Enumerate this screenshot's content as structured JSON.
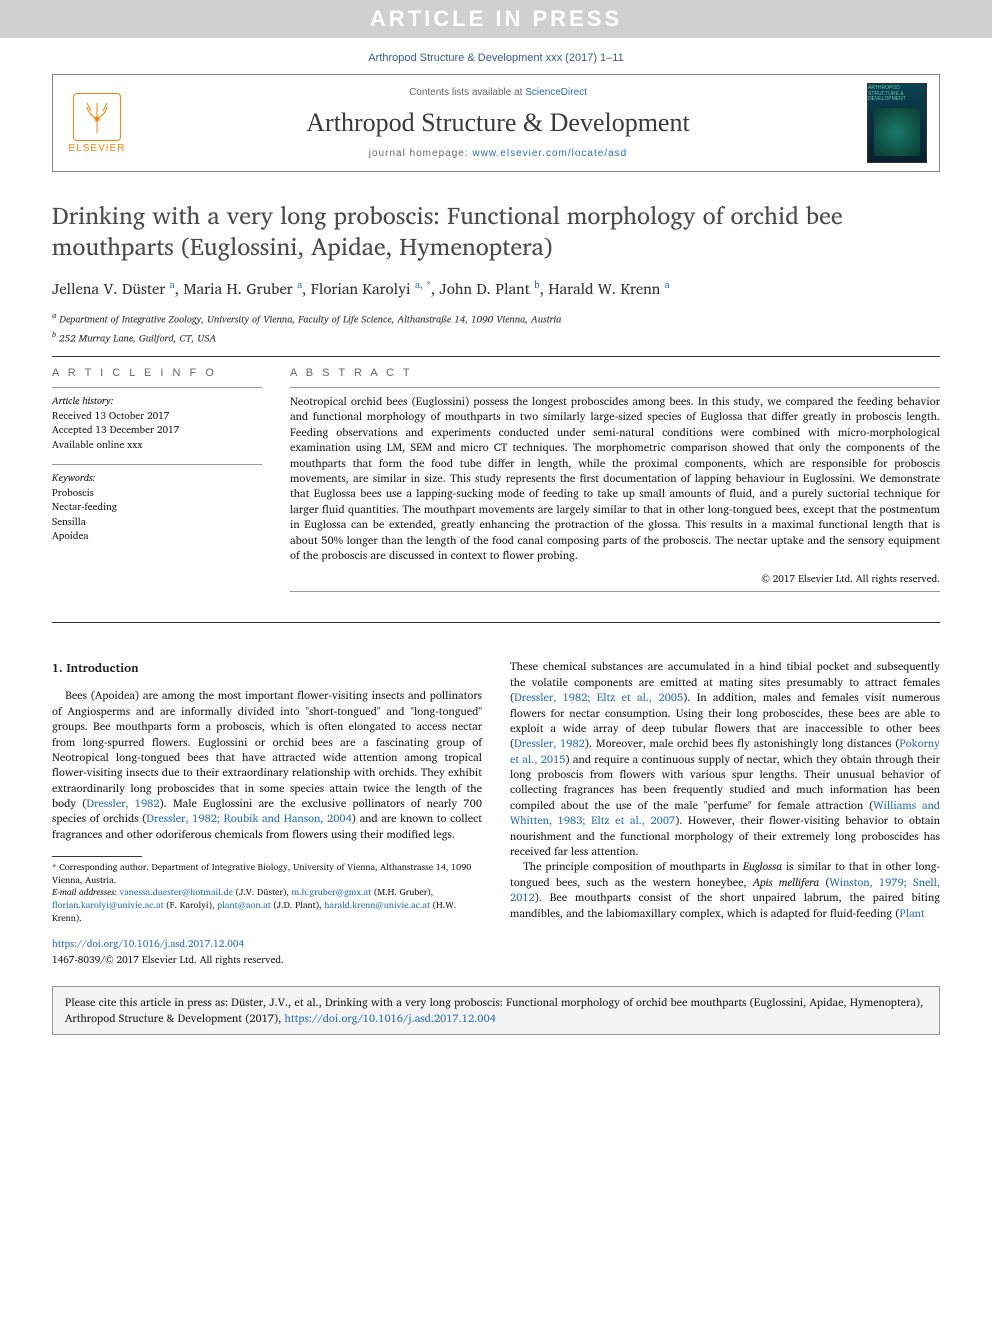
{
  "article_in_press": "ARTICLE IN PRESS",
  "citation_top": "Arthropod Structure & Development xxx (2017) 1–11",
  "header": {
    "contents_prefix": "Contents lists available at ",
    "contents_link": "ScienceDirect",
    "journal_name": "Arthropod Structure & Development",
    "homepage_prefix": "journal homepage: ",
    "homepage_url": "www.elsevier.com/locate/asd",
    "elsevier_label": "ELSEVIER",
    "cover_label": "ARTHROPOD\nSTRUCTURE &\nDEVELOPMENT"
  },
  "title": "Drinking with a very long proboscis: Functional morphology of orchid bee mouthparts (Euglossini, Apidae, Hymenoptera)",
  "authors_html": "Jellena V. Düster <sup>a</sup>, Maria H. Gruber <sup>a</sup>, Florian Karolyi <sup>a, *</sup>, John D. Plant <sup>b</sup>, Harald W. Krenn <sup>a</sup>",
  "affiliations": [
    "a Department of Integrative Zoology, University of Vienna, Faculty of Life Science, Althanstraße 14, 1090 Vienna, Austria",
    "b 252 Murray Lane, Guilford, CT, USA"
  ],
  "info": {
    "heading_info": "A R T I C L E   I N F O",
    "history_label": "Article history:",
    "history": [
      "Received 13 October 2017",
      "Accepted 13 December 2017",
      "Available online xxx"
    ],
    "keywords_label": "Keywords:",
    "keywords": [
      "Proboscis",
      "Nectar-feeding",
      "Sensilla",
      "Apoidea"
    ]
  },
  "abstract": {
    "heading": "A B S T R A C T",
    "text": "Neotropical orchid bees (Euglossini) possess the longest proboscides among bees. In this study, we compared the feeding behavior and functional morphology of mouthparts in two similarly large-sized species of Euglossa that differ greatly in proboscis length. Feeding observations and experiments conducted under semi-natural conditions were combined with micro-morphological examination using LM, SEM and micro CT techniques. The morphometric comparison showed that only the components of the mouthparts that form the food tube differ in length, while the proximal components, which are responsible for proboscis movements, are similar in size. This study represents the first documentation of lapping behaviour in Euglossini. We demonstrate that Euglossa bees use a lapping-sucking mode of feeding to take up small amounts of fluid, and a purely suctorial technique for larger fluid quantities. The mouthpart movements are largely similar to that in other long-tongued bees, except that the postmentum in Euglossa can be extended, greatly enhancing the protraction of the glossa. This results in a maximal functional length that is about 50% longer than the length of the food canal composing parts of the proboscis. The nectar uptake and the sensory equipment of the proboscis are discussed in context to flower probing.",
    "copyright": "© 2017 Elsevier Ltd. All rights reserved."
  },
  "introduction": {
    "heading": "1. Introduction",
    "col1_html": "Bees (Apoidea) are among the most important flower-visiting insects and pollinators of Angiosperms and are informally divided into \"short-tongued\" and \"long-tongued\" groups. Bee mouthparts form a proboscis, which is often elongated to access nectar from long-spurred flowers. Euglossini or orchid bees are a fascinating group of Neotropical long-tongued bees that have attracted wide attention among tropical flower-visiting insects due to their extraordinary relationship with orchids. They exhibit extraordinarily long proboscides that in some species attain twice the length of the body (<a href=\"#\">Dressler, 1982</a>). Male Euglossini are the exclusive pollinators of nearly 700 species of orchids (<a href=\"#\">Dressler, 1982; Roubik and Hanson, 2004</a>) and are known to collect fragrances and other odoriferous chemicals from flowers using their modified legs.",
    "col2_html": "These chemical substances are accumulated in a hind tibial pocket and subsequently the volatile components are emitted at mating sites presumably to attract females (<a href=\"#\">Dressler, 1982; Eltz et al., 2005</a>). In addition, males and females visit numerous flowers for nectar consumption. Using their long proboscides, these bees are able to exploit a wide array of deep tubular flowers that are inaccessible to other bees (<a href=\"#\">Dressler, 1982</a>). Moreover, male orchid bees fly astonishingly long distances (<a href=\"#\">Pokorny et al., 2015</a>) and require a continuous supply of nectar, which they obtain through their long proboscis from flowers with various spur lengths. Their unusual behavior of collecting fragrances has been frequently studied and much information has been compiled about the use of the male \"perfume\" for female attraction (<a href=\"#\">Williams and Whitten, 1983; Eltz et al., 2007</a>). However, their flower-visiting behavior to obtain nourishment and the functional morphology of their extremely long proboscides has received far less attention.",
    "col2_p2_html": "The principle composition of mouthparts in <em>Euglossa</em> is similar to that in other long-tongued bees, such as the western honeybee, <em>Apis mellifera</em> (<a href=\"#\">Winston, 1979; Snell, 2012</a>). Bee mouthparts consist of the short unpaired labrum, the paired biting mandibles, and the labiomaxillary complex, which is adapted for fluid-feeding (<a href=\"#\">Plant</a>"
  },
  "footnotes": {
    "corresponding": "* Corresponding author. Department of Integrative Biology, University of Vienna, Althanstrasse 14, 1090 Vienna, Austria.",
    "emails_label": "E-mail addresses:",
    "emails_html": "<a href=\"#\">vanessa.duester@hotmail.de</a> (J.V. Düster), <a href=\"#\">m.h.gruber@gmx.at</a> (M.H. Gruber), <a href=\"#\">florian.karolyi@univie.ac.at</a> (F. Karolyi), <a href=\"#\">plant@aon.at</a> (J.D. Plant), <a href=\"#\">harald.krenn@univie.ac.at</a> (H.W. Krenn)."
  },
  "doi": {
    "url": "https://doi.org/10.1016/j.asd.2017.12.004",
    "issn_line": "1467-8039/© 2017 Elsevier Ltd. All rights reserved."
  },
  "cite_box_html": "Please cite this article in press as: Düster, J.V., et al., Drinking with a very long proboscis: Functional morphology of orchid bee mouthparts (Euglossini, Apidae, Hymenoptera), Arthropod Structure & Development (2017), <a href=\"#\">https://doi.org/10.1016/j.asd.2017.12.004</a>",
  "colors": {
    "link": "#2a6ebb",
    "elsevier_orange": "#ff8200",
    "press_banner_bg": "#d0d0d0",
    "press_banner_fg": "#ffffff"
  }
}
